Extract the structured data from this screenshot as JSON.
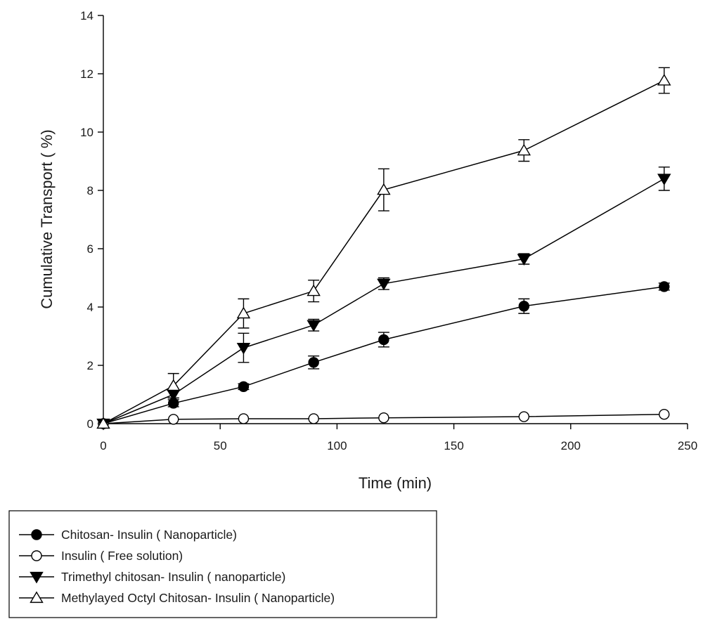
{
  "chart_data": {
    "type": "line",
    "title": "",
    "xlabel": "Time (min)",
    "ylabel": "Cumulative Transport ( %)",
    "xlim": [
      0,
      250
    ],
    "ylim": [
      0,
      14
    ],
    "xticks": [
      0,
      50,
      100,
      150,
      200,
      250
    ],
    "yticks": [
      0,
      2,
      4,
      6,
      8,
      10,
      12,
      14
    ],
    "grid": false,
    "legend_position": "bottom",
    "series": [
      {
        "name": "Chitosan- Insulin ( Nanoparticle)",
        "marker": "circle-filled",
        "x": [
          0,
          30,
          60,
          90,
          120,
          180,
          240
        ],
        "y": [
          0,
          0.7,
          1.27,
          2.1,
          2.88,
          4.03,
          4.7
        ],
        "err": [
          0,
          0.12,
          0.1,
          0.22,
          0.25,
          0.25,
          0.12
        ]
      },
      {
        "name": "Insulin ( Free solution)",
        "marker": "circle-open",
        "x": [
          0,
          30,
          60,
          90,
          120,
          180,
          240
        ],
        "y": [
          0,
          0.15,
          0.17,
          0.17,
          0.2,
          0.24,
          0.32
        ],
        "err": [
          0,
          0,
          0,
          0,
          0,
          0,
          0
        ]
      },
      {
        "name": "Trimethyl chitosan- Insulin ( nanoparticle)",
        "marker": "triangle-down-filled",
        "x": [
          0,
          30,
          60,
          90,
          120,
          180,
          240
        ],
        "y": [
          0,
          1.0,
          2.6,
          3.38,
          4.8,
          5.65,
          8.4
        ],
        "err": [
          0,
          0.12,
          0.5,
          0.2,
          0.2,
          0.18,
          0.4
        ]
      },
      {
        "name": "Methylayed Octyl Chitosan- Insulin ( Nanoparticle)",
        "marker": "triangle-up-open",
        "x": [
          0,
          30,
          60,
          90,
          120,
          180,
          240
        ],
        "y": [
          0,
          1.3,
          3.78,
          4.55,
          8.02,
          9.37,
          11.77
        ],
        "err": [
          0,
          0.42,
          0.5,
          0.37,
          0.72,
          0.37,
          0.44
        ]
      }
    ]
  }
}
